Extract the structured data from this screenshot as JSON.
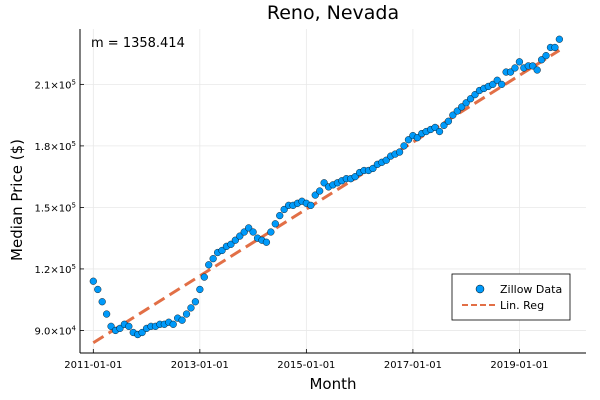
{
  "chart_data": {
    "type": "scatter",
    "title": "Reno, Nevada",
    "xlabel": "Month",
    "ylabel": "Median Price ($)",
    "annotation": "m = 1358.414",
    "x_tick_labels": [
      "2011-01-01",
      "2013-01-01",
      "2015-01-01",
      "2017-01-01",
      "2019-01-01"
    ],
    "x_tick_positions": [
      0,
      24,
      48,
      72,
      96
    ],
    "y_ticks": [
      {
        "value": 90000,
        "mantissa": "9.0",
        "base": "×10",
        "exp": "4"
      },
      {
        "value": 120000,
        "mantissa": "1.2",
        "base": "×10",
        "exp": "5"
      },
      {
        "value": 150000,
        "mantissa": "1.5",
        "base": "×10",
        "exp": "5"
      },
      {
        "value": 180000,
        "mantissa": "1.8",
        "base": "×10",
        "exp": "5"
      },
      {
        "value": 210000,
        "mantissa": "2.1",
        "base": "×10",
        "exp": "5"
      }
    ],
    "xlim": [
      -3,
      111
    ],
    "ylim": [
      79000,
      237000
    ],
    "grid": true,
    "legend_position": "bottom-right",
    "series": [
      {
        "name": "Zillow Data",
        "kind": "scatter",
        "color": "#009AFA",
        "x": [
          0,
          1,
          2,
          3,
          4,
          5,
          6,
          7,
          8,
          9,
          10,
          11,
          12,
          13,
          14,
          15,
          16,
          17,
          18,
          19,
          20,
          21,
          22,
          23,
          24,
          25,
          26,
          27,
          28,
          29,
          30,
          31,
          32,
          33,
          34,
          35,
          36,
          37,
          38,
          39,
          40,
          41,
          42,
          43,
          44,
          45,
          46,
          47,
          48,
          49,
          50,
          51,
          52,
          53,
          54,
          55,
          56,
          57,
          58,
          59,
          60,
          61,
          62,
          63,
          64,
          65,
          66,
          67,
          68,
          69,
          70,
          71,
          72,
          73,
          74,
          75,
          76,
          77,
          78,
          79,
          80,
          81,
          82,
          83,
          84,
          85,
          86,
          87,
          88,
          89,
          90,
          91,
          92,
          93,
          94,
          95,
          96,
          97,
          98,
          99,
          100,
          101,
          102,
          103,
          104,
          105
        ],
        "y": [
          114000,
          110000,
          104000,
          98000,
          92000,
          90000,
          91000,
          93000,
          92000,
          89000,
          88000,
          89000,
          91000,
          92000,
          92000,
          93000,
          93000,
          94000,
          93000,
          96000,
          95000,
          98000,
          101000,
          104000,
          110000,
          116000,
          122000,
          125000,
          128000,
          129000,
          131000,
          132000,
          134000,
          136000,
          138000,
          140000,
          138000,
          135000,
          134000,
          133000,
          138000,
          142000,
          146000,
          149000,
          151000,
          151000,
          152000,
          153000,
          152000,
          151000,
          156000,
          158000,
          162000,
          160000,
          161000,
          162000,
          163000,
          164000,
          164000,
          165000,
          167000,
          168000,
          168000,
          169000,
          171000,
          172000,
          173000,
          175000,
          176000,
          177000,
          180000,
          183000,
          185000,
          184000,
          186000,
          187000,
          188000,
          189000,
          187000,
          190000,
          192000,
          195000,
          197000,
          199000,
          201000,
          203000,
          205000,
          207000,
          208000,
          209000,
          210000,
          212000,
          210000,
          216000,
          216000,
          218000,
          221000,
          218000,
          219000,
          219000,
          217000,
          222000,
          224000,
          228000,
          228000,
          232000
        ]
      },
      {
        "name": "Lin. Reg",
        "kind": "line",
        "color": "#E26F46",
        "slope": 1358.414,
        "x": [
          0,
          105
        ],
        "y": [
          84000,
          226600
        ]
      }
    ]
  }
}
